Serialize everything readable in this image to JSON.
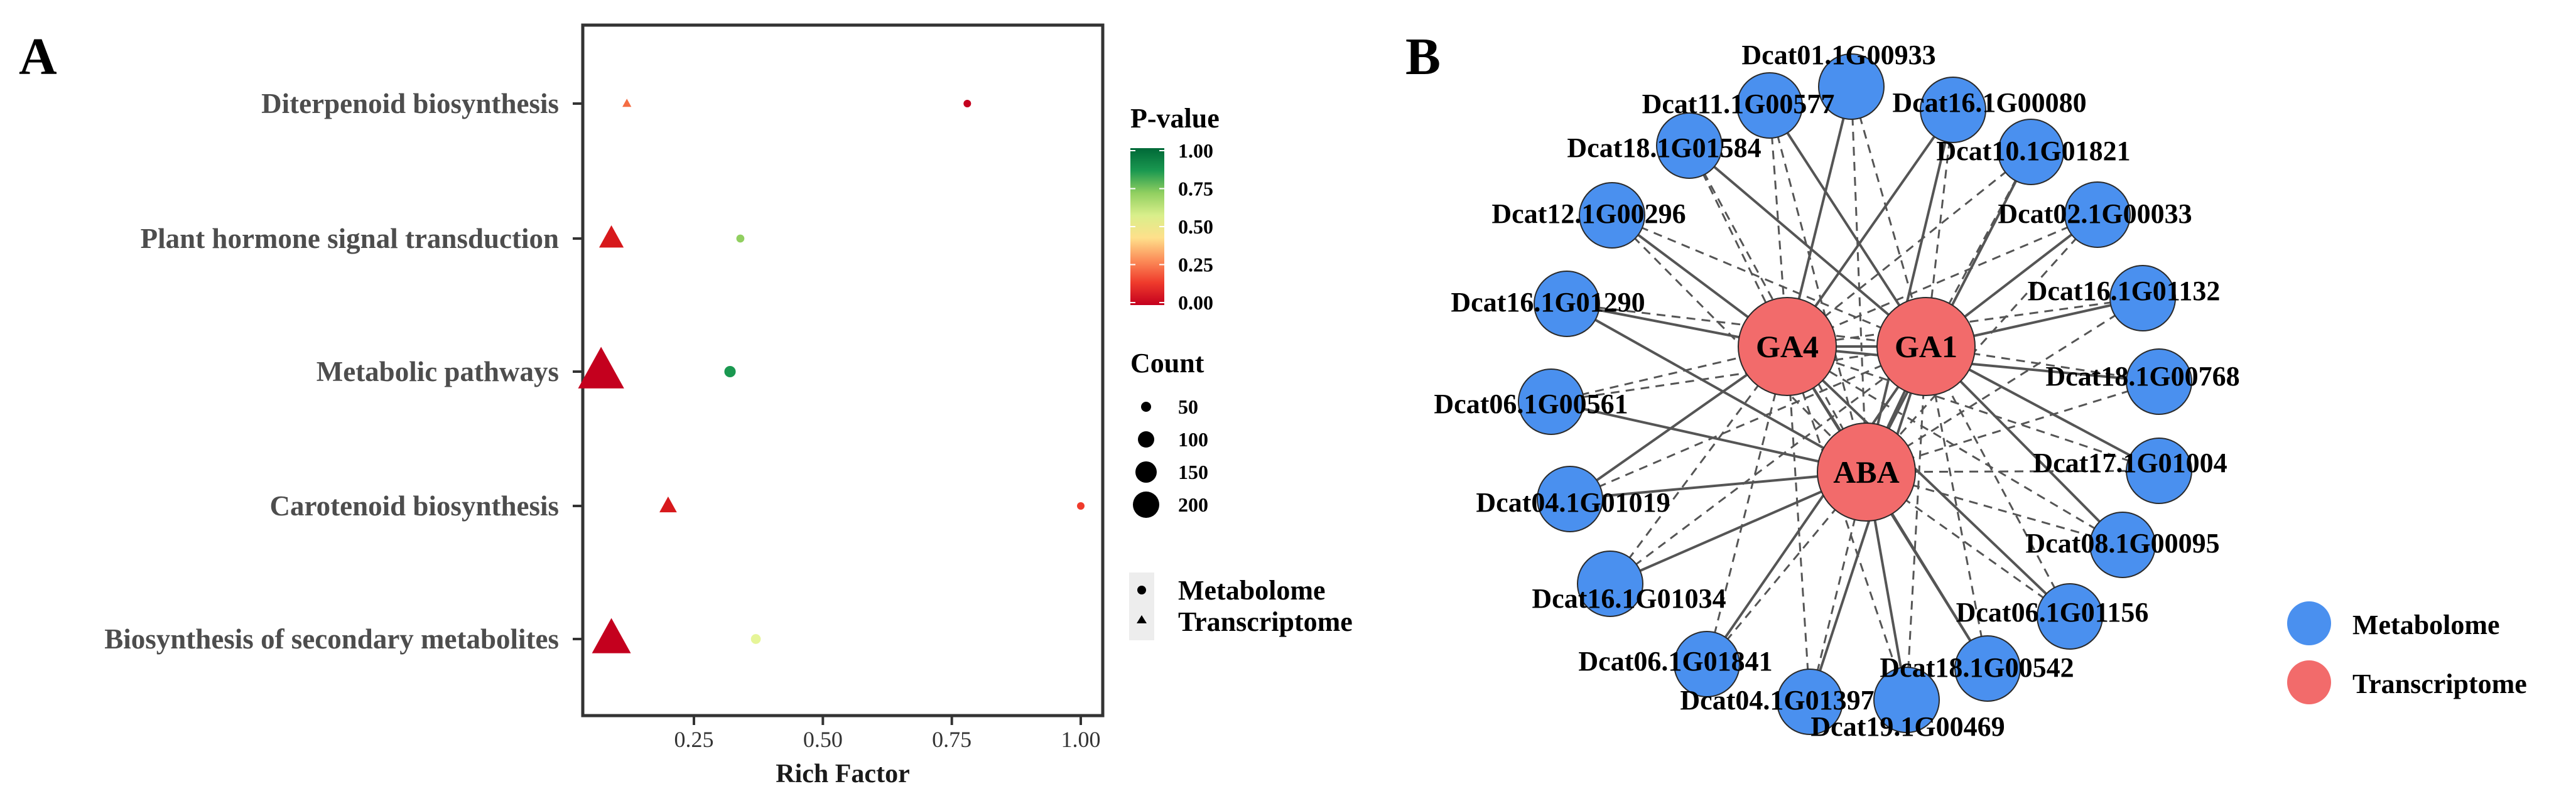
{
  "panel_a": {
    "label": "A",
    "colorbar_colors": [
      "#c4001e",
      "#ef3b2c",
      "#fc8d59",
      "#fee08b",
      "#d9ef8b",
      "#91cf60",
      "#1a9850",
      "#006837"
    ]
  },
  "panel_b": {
    "label": "B"
  },
  "chart_data": [
    {
      "type": "scatter",
      "title": "",
      "xlabel": "Rich Factor",
      "ylabel": "",
      "xlim": [
        0.0,
        1.05
      ],
      "x_ticks": [
        0.25,
        0.5,
        0.75,
        1.0
      ],
      "x_tick_labels": [
        "0.25",
        "0.50",
        "0.75",
        "1.00"
      ],
      "categories": [
        "Diterpenoid biosynthesis",
        "Plant hormone signal transduction",
        "Metabolic pathways",
        "Carotenoid biosynthesis",
        "Biosynthesis of secondary metabolites"
      ],
      "series": [
        {
          "name": "Metabolome",
          "marker": "circle",
          "points": [
            {
              "category": "Diterpenoid biosynthesis",
              "rich_factor": 0.78,
              "p_value": 0.02,
              "count": 3,
              "color": "#c4001e"
            },
            {
              "category": "Plant hormone signal transduction",
              "rich_factor": 0.34,
              "p_value": 0.7,
              "count": 4,
              "color": "#91cf60"
            },
            {
              "category": "Metabolic pathways",
              "rich_factor": 0.32,
              "p_value": 0.88,
              "count": 8,
              "color": "#1a9850"
            },
            {
              "category": "Carotenoid biosynthesis",
              "rich_factor": 1.0,
              "p_value": 0.1,
              "count": 1,
              "color": "#ef3b2c"
            },
            {
              "category": "Biosynthesis of secondary metabolites",
              "rich_factor": 0.37,
              "p_value": 0.42,
              "count": 6,
              "color": "#e6f598"
            }
          ]
        },
        {
          "name": "Transcriptome",
          "marker": "triangle",
          "points": [
            {
              "category": "Diterpenoid biosynthesis",
              "rich_factor": 0.12,
              "p_value": 0.12,
              "count": 8,
              "color": "#f46d43"
            },
            {
              "category": "Plant hormone signal transduction",
              "rich_factor": 0.09,
              "p_value": 0.02,
              "count": 60,
              "color": "#d7191c"
            },
            {
              "category": "Metabolic pathways",
              "rich_factor": 0.07,
              "p_value": 0.0,
              "count": 210,
              "color": "#c4001e"
            },
            {
              "category": "Carotenoid biosynthesis",
              "rich_factor": 0.2,
              "p_value": 0.01,
              "count": 30,
              "color": "#d7191c"
            },
            {
              "category": "Biosynthesis of secondary metabolites",
              "rich_factor": 0.09,
              "p_value": 0.0,
              "count": 150,
              "color": "#c4001e"
            }
          ]
        }
      ],
      "legend": {
        "pvalue_title": "P-value",
        "pvalue_ticks": [
          "1.00",
          "0.75",
          "0.50",
          "0.25",
          "0.00"
        ],
        "count_title": "Count",
        "count_ticks": [
          "50",
          "100",
          "150",
          "200"
        ],
        "shape_items": [
          "Metabolome",
          "Transcriptome"
        ],
        "placement": "right"
      }
    },
    {
      "type": "network",
      "hubs": [
        "GA4",
        "GA1",
        "ABA"
      ],
      "metabolome_nodes": [
        "Dcat01.1G00933",
        "Dcat11.1G00577",
        "Dcat16.1G00080",
        "Dcat18.1G01584",
        "Dcat10.1G01821",
        "Dcat12.1G00296",
        "Dcat02.1G00033",
        "Dcat16.1G01290",
        "Dcat16.1G01132",
        "Dcat06.1G00561",
        "Dcat18.1G00768",
        "Dcat17.1G01004",
        "Dcat04.1G01019",
        "Dcat08.1G00095",
        "Dcat16.1G01034",
        "Dcat06.1G01156",
        "Dcat06.1G01841",
        "Dcat18.1G00542",
        "Dcat04.1G01397",
        "Dcat19.1G00469"
      ],
      "edge_styles": [
        "solid",
        "dashed"
      ],
      "legend": {
        "items": [
          {
            "label": "Metabolome",
            "color": "#4a90ef"
          },
          {
            "label": "Transcriptome",
            "color": "#f26b6b"
          }
        ],
        "placement": "right"
      },
      "colors": {
        "metabolome": "#4a90ef",
        "transcriptome": "#f26b6b",
        "edge": "#555555"
      }
    }
  ]
}
